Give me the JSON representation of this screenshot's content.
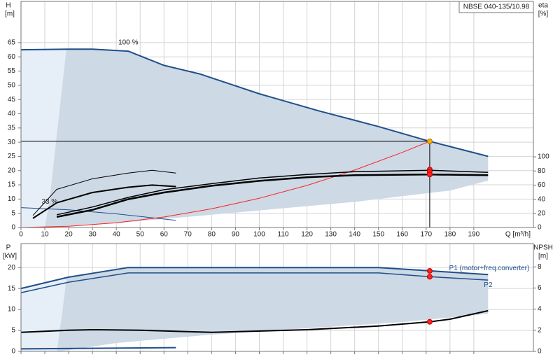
{
  "chart_data": [
    {
      "type": "line",
      "title": "NBSE 040-135/10.98",
      "xlabel": "Q [m³/h]",
      "ylabel": "H",
      "yunit": "[m]",
      "y2label": "eta",
      "y2unit": "[%]",
      "xlim": [
        0,
        215
      ],
      "xticks": [
        0,
        10,
        20,
        30,
        40,
        50,
        60,
        70,
        80,
        90,
        100,
        110,
        120,
        130,
        140,
        150,
        160,
        170,
        180,
        190
      ],
      "ylim": [
        0,
        79.5
      ],
      "yticks": [
        0,
        5,
        10,
        15,
        20,
        25,
        30,
        35,
        40,
        45,
        50,
        55,
        60,
        65
      ],
      "y2lim": [
        0,
        320
      ],
      "y2ticks": [
        0,
        20,
        40,
        60,
        80,
        100
      ],
      "grid": true,
      "show_xtick_labels": true,
      "annotations": [
        "100 %",
        "33 %"
      ],
      "series": [
        {
          "fill": true,
          "color": "#e6eef7",
          "x": [
            0,
            19,
            18,
            16,
            14,
            12,
            10,
            0
          ],
          "values": [
            62.5,
            62.5,
            55,
            40,
            25,
            10,
            0,
            0
          ]
        },
        {
          "fill": true,
          "color": "#cdd9e5",
          "x": [
            19,
            20,
            30,
            45,
            60,
            75,
            100,
            125,
            150,
            171.5,
            196,
            196,
            180,
            160,
            140,
            120,
            100,
            80,
            60,
            40,
            20,
            10,
            12,
            14,
            16,
            18
          ],
          "values": [
            62.5,
            62.7,
            62.7,
            62,
            57,
            54,
            47,
            41,
            35.5,
            30.3,
            25,
            16.5,
            13,
            11,
            9,
            7.5,
            6,
            4.5,
            3,
            1.5,
            0.5,
            0,
            10,
            25,
            40,
            55
          ]
        },
        {
          "color": "#1f4f8a",
          "width": 2,
          "x": [
            0,
            20,
            30,
            45,
            60,
            75,
            100,
            125,
            150,
            171.5,
            196
          ],
          "values": [
            62.5,
            62.7,
            62.7,
            62,
            57,
            54,
            47,
            41,
            35.5,
            30.3,
            25
          ]
        },
        {
          "color": "#1f4f8a",
          "width": 1,
          "x": [
            0,
            20,
            40,
            65
          ],
          "values": [
            7,
            6.2,
            4.8,
            2.5
          ]
        },
        {
          "color": "#ff2020",
          "width": 1,
          "x": [
            0,
            20,
            40,
            60,
            80,
            100,
            120,
            140,
            160,
            171.5
          ],
          "values": [
            0,
            0.41,
            1.65,
            3.7,
            6.6,
            10.3,
            14.8,
            20.2,
            26.4,
            30.3
          ]
        },
        {
          "color": "#000000",
          "width": 1,
          "x": [
            0,
            171.5,
            171.5
          ],
          "values": [
            30.3,
            30.3,
            0
          ]
        },
        {
          "color": "#000000",
          "width": 1.5,
          "axis": "y2",
          "x": [
            15,
            30,
            45,
            60,
            80,
            100,
            120,
            140,
            171.5,
            196
          ],
          "values": [
            18,
            29,
            42.6,
            53.5,
            62,
            70,
            75,
            79,
            81,
            78
          ]
        },
        {
          "color": "#000000",
          "width": 2.5,
          "axis": "y2",
          "x": [
            15,
            30,
            45,
            60,
            80,
            100,
            120,
            140,
            171.5,
            196
          ],
          "values": [
            15,
            25,
            40,
            49.5,
            59,
            66,
            71,
            74,
            75,
            74
          ]
        },
        {
          "color": "#000000",
          "width": 1,
          "axis": "y2",
          "x": [
            5,
            15,
            30,
            45,
            55,
            65
          ],
          "values": [
            17,
            54,
            69,
            77,
            81,
            77
          ]
        },
        {
          "color": "#000000",
          "width": 2,
          "axis": "y2",
          "x": [
            5,
            15,
            30,
            45,
            55,
            65
          ],
          "values": [
            13,
            35,
            49.5,
            57,
            60,
            58
          ]
        },
        {
          "marker": true,
          "color": "#ff2020",
          "axis": "y2",
          "x": [
            171.5,
            171.5,
            171.5
          ],
          "values": [
            82,
            79,
            75
          ]
        },
        {
          "marker": true,
          "color": "#f5b400",
          "x": [
            171.5
          ],
          "values": [
            30.3
          ]
        }
      ]
    },
    {
      "type": "line",
      "ylabel": "P",
      "yunit": "[kW]",
      "y2label": "NPSH",
      "y2unit": "[m]",
      "xlim": [
        0,
        215
      ],
      "xticks": [
        0,
        10,
        20,
        30,
        40,
        50,
        60,
        70,
        80,
        90,
        100,
        110,
        120,
        130,
        140,
        150,
        160,
        170,
        180,
        190
      ],
      "ylim": [
        0,
        25.7
      ],
      "yticks": [
        0,
        5,
        10,
        15,
        20
      ],
      "y2lim": [
        0,
        10.2
      ],
      "y2ticks": [
        0,
        2,
        4,
        6,
        8
      ],
      "grid": true,
      "show_xtick_labels": false,
      "series": [
        {
          "fill": true,
          "color": "#e6eef7",
          "x": [
            0,
            19,
            19,
            17,
            15,
            0
          ],
          "values": [
            15,
            17.5,
            17,
            8,
            0,
            0
          ]
        },
        {
          "fill": true,
          "color": "#cdd9e5",
          "x": [
            19,
            45,
            150,
            171.5,
            196,
            196,
            160,
            120,
            80,
            40,
            20,
            15,
            17,
            19
          ],
          "values": [
            17.5,
            20,
            20,
            19.2,
            18.3,
            9,
            7,
            5.5,
            4,
            2,
            0.3,
            0,
            8,
            17
          ]
        },
        {
          "name": "P1 (motor+freq.converter)",
          "color": "#1f4f8a",
          "width": 2,
          "x": [
            0,
            20,
            45,
            100,
            150,
            171.5,
            196
          ],
          "values": [
            15,
            17.7,
            20,
            20,
            20,
            19.2,
            18.3
          ]
        },
        {
          "name": "P2",
          "color": "#1f4f8a",
          "width": 1.5,
          "x": [
            0,
            20,
            45,
            150,
            171.5,
            196
          ],
          "values": [
            14,
            16.5,
            18.7,
            18.7,
            17.8,
            17
          ]
        },
        {
          "color": "#000000",
          "width": 2,
          "axis": "y2",
          "x": [
            0,
            20,
            30,
            50,
            80,
            120,
            150,
            171.5,
            180,
            196
          ],
          "values": [
            1.8,
            2.0,
            2.05,
            2.0,
            1.8,
            2.05,
            2.4,
            2.8,
            3.05,
            3.85
          ]
        },
        {
          "color": "#1f4f8a",
          "width": 2,
          "x": [
            0,
            65
          ],
          "values": [
            0.6,
            0.9
          ]
        },
        {
          "marker": true,
          "color": "#ff2020",
          "x": [
            171.5,
            171.5
          ],
          "values": [
            19.2,
            17.8
          ]
        },
        {
          "marker": true,
          "color": "#ff2020",
          "axis": "y2",
          "x": [
            171.5
          ],
          "values": [
            2.8
          ]
        }
      ]
    }
  ]
}
